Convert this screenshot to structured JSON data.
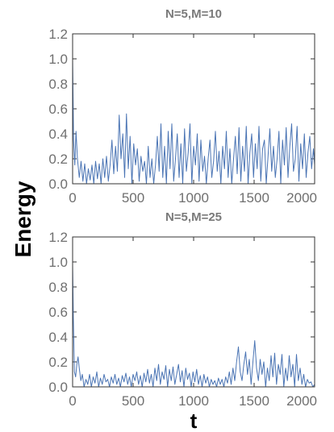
{
  "figure": {
    "ylabel": "Energy",
    "xlabel": "t"
  },
  "chart_data": [
    {
      "type": "line",
      "title": "N=5,M=10",
      "xlim": [
        0,
        2000
      ],
      "ylim": [
        0,
        1.2
      ],
      "xticks": [
        "0",
        "500",
        "1000",
        "1500",
        "2000"
      ],
      "yticks": [
        "0.0",
        "0.2",
        "0.4",
        "0.6",
        "0.8",
        "1.0",
        "1.2"
      ],
      "grid": false,
      "color": "#4a74b4",
      "series": [
        {
          "x": [
            0,
            8,
            18,
            28,
            40,
            55,
            70,
            85,
            100,
            115,
            130,
            145,
            160,
            175,
            190,
            205,
            220,
            235,
            250,
            265,
            280,
            295,
            310,
            325,
            340,
            355,
            370,
            385,
            400,
            415,
            430,
            445,
            460,
            475,
            490,
            505,
            520,
            535,
            550,
            565,
            580,
            595,
            610,
            625,
            640,
            655,
            670,
            685,
            700,
            715,
            730,
            745,
            760,
            775,
            790,
            805,
            820,
            835,
            850,
            865,
            880,
            895,
            910,
            925,
            940,
            955,
            970,
            985,
            1000,
            1015,
            1030,
            1045,
            1060,
            1075,
            1090,
            1105,
            1120,
            1135,
            1150,
            1165,
            1180,
            1195,
            1210,
            1225,
            1240,
            1255,
            1270,
            1285,
            1300,
            1315,
            1330,
            1345,
            1360,
            1375,
            1390,
            1405,
            1420,
            1435,
            1450,
            1465,
            1480,
            1495,
            1510,
            1525,
            1540,
            1555,
            1570,
            1585,
            1600,
            1615,
            1630,
            1645,
            1660,
            1675,
            1690,
            1705,
            1720,
            1735,
            1750,
            1765,
            1780,
            1795,
            1810,
            1825,
            1840,
            1855,
            1870,
            1885,
            1900,
            1915,
            1930,
            1945,
            1960,
            1975,
            1990,
            2000
          ],
          "y": [
            1.0,
            0.35,
            0.15,
            0.42,
            0.2,
            0.05,
            0.18,
            0.02,
            0.16,
            0.0,
            0.12,
            0.03,
            0.15,
            0.0,
            0.18,
            0.04,
            0.16,
            0.0,
            0.2,
            0.05,
            0.22,
            0.02,
            0.15,
            0.35,
            0.08,
            0.3,
            0.1,
            0.55,
            0.2,
            0.4,
            0.05,
            0.56,
            0.12,
            0.38,
            0.0,
            0.32,
            0.15,
            0.28,
            0.02,
            0.22,
            0.1,
            0.18,
            0.0,
            0.3,
            0.05,
            0.2,
            0.0,
            0.15,
            0.38,
            0.1,
            0.48,
            0.05,
            0.3,
            0.0,
            0.42,
            0.12,
            0.48,
            0.02,
            0.2,
            0.4,
            0.05,
            0.32,
            0.0,
            0.44,
            0.1,
            0.25,
            0.48,
            0.0,
            0.3,
            0.15,
            0.4,
            0.02,
            0.35,
            0.1,
            0.22,
            0.0,
            0.2,
            0.35,
            0.05,
            0.18,
            0.42,
            0.1,
            0.26,
            0.0,
            0.3,
            0.12,
            0.42,
            0.05,
            0.28,
            0.0,
            0.2,
            0.38,
            0.08,
            0.45,
            0.02,
            0.3,
            0.1,
            0.46,
            0.0,
            0.25,
            0.4,
            0.05,
            0.32,
            0.12,
            0.46,
            0.02,
            0.28,
            0.35,
            0.0,
            0.22,
            0.44,
            0.1,
            0.3,
            0.05,
            0.2,
            0.42,
            0.0,
            0.35,
            0.15,
            0.45,
            0.05,
            0.3,
            0.48,
            0.1,
            0.2,
            0.46,
            0.02,
            0.32,
            0.12,
            0.4,
            0.05,
            0.25,
            0.38,
            0.12,
            0.28,
            0.15
          ]
        }
      ]
    },
    {
      "type": "line",
      "title": "N=5,M=25",
      "xlim": [
        0,
        2000
      ],
      "ylim": [
        0,
        1.2
      ],
      "xticks": [
        "0",
        "500",
        "1000",
        "1500",
        "2000"
      ],
      "yticks": [
        "0.0",
        "0.2",
        "0.4",
        "0.6",
        "0.8",
        "1.0",
        "1.2"
      ],
      "grid": false,
      "color": "#4a74b4",
      "series": [
        {
          "x": [
            0,
            6,
            15,
            25,
            35,
            45,
            55,
            68,
            80,
            95,
            110,
            125,
            140,
            155,
            170,
            185,
            200,
            215,
            230,
            245,
            260,
            275,
            290,
            305,
            320,
            335,
            350,
            365,
            380,
            395,
            410,
            425,
            440,
            455,
            470,
            485,
            500,
            515,
            530,
            545,
            560,
            575,
            590,
            605,
            620,
            635,
            650,
            665,
            680,
            695,
            710,
            725,
            740,
            755,
            770,
            785,
            800,
            815,
            830,
            845,
            860,
            875,
            890,
            905,
            920,
            935,
            950,
            965,
            980,
            995,
            1010,
            1025,
            1040,
            1055,
            1070,
            1085,
            1100,
            1115,
            1130,
            1145,
            1160,
            1175,
            1190,
            1205,
            1220,
            1235,
            1250,
            1265,
            1280,
            1295,
            1310,
            1325,
            1340,
            1355,
            1370,
            1385,
            1400,
            1415,
            1430,
            1445,
            1460,
            1475,
            1490,
            1505,
            1520,
            1535,
            1550,
            1565,
            1580,
            1595,
            1610,
            1625,
            1640,
            1655,
            1670,
            1685,
            1700,
            1715,
            1730,
            1745,
            1760,
            1775,
            1790,
            1805,
            1820,
            1835,
            1850,
            1865,
            1880,
            1895,
            1910,
            1925,
            1940,
            1955,
            1970,
            1985,
            2000
          ],
          "y": [
            0.98,
            0.55,
            0.12,
            0.08,
            0.18,
            0.24,
            0.15,
            0.05,
            0.1,
            0.0,
            0.06,
            0.02,
            0.1,
            0.0,
            0.08,
            0.03,
            0.12,
            0.0,
            0.07,
            0.02,
            0.1,
            0.04,
            0.06,
            0.0,
            0.08,
            0.03,
            0.1,
            0.02,
            0.07,
            0.0,
            0.09,
            0.04,
            0.11,
            0.02,
            0.08,
            0.0,
            0.1,
            0.05,
            0.12,
            0.02,
            0.09,
            0.0,
            0.11,
            0.04,
            0.14,
            0.03,
            0.1,
            0.0,
            0.15,
            0.05,
            0.18,
            0.02,
            0.12,
            0.06,
            0.17,
            0.0,
            0.14,
            0.05,
            0.16,
            0.02,
            0.1,
            0.18,
            0.04,
            0.13,
            0.0,
            0.15,
            0.06,
            0.11,
            0.0,
            0.12,
            0.04,
            0.14,
            0.02,
            0.09,
            0.0,
            0.1,
            0.03,
            0.08,
            0.0,
            0.06,
            0.02,
            0.05,
            0.0,
            0.07,
            0.02,
            0.06,
            0.0,
            0.08,
            0.03,
            0.12,
            0.02,
            0.15,
            0.05,
            0.2,
            0.32,
            0.12,
            0.05,
            0.18,
            0.28,
            0.1,
            0.22,
            0.02,
            0.2,
            0.37,
            0.15,
            0.05,
            0.22,
            0.1,
            0.2,
            0.0,
            0.15,
            0.05,
            0.25,
            0.08,
            0.27,
            0.02,
            0.18,
            0.1,
            0.26,
            0.0,
            0.15,
            0.05,
            0.25,
            0.08,
            0.18,
            0.0,
            0.26,
            0.05,
            0.15,
            0.02,
            0.1,
            0.0,
            0.06,
            0.03,
            0.04,
            0.0,
            0.02
          ]
        }
      ]
    }
  ]
}
